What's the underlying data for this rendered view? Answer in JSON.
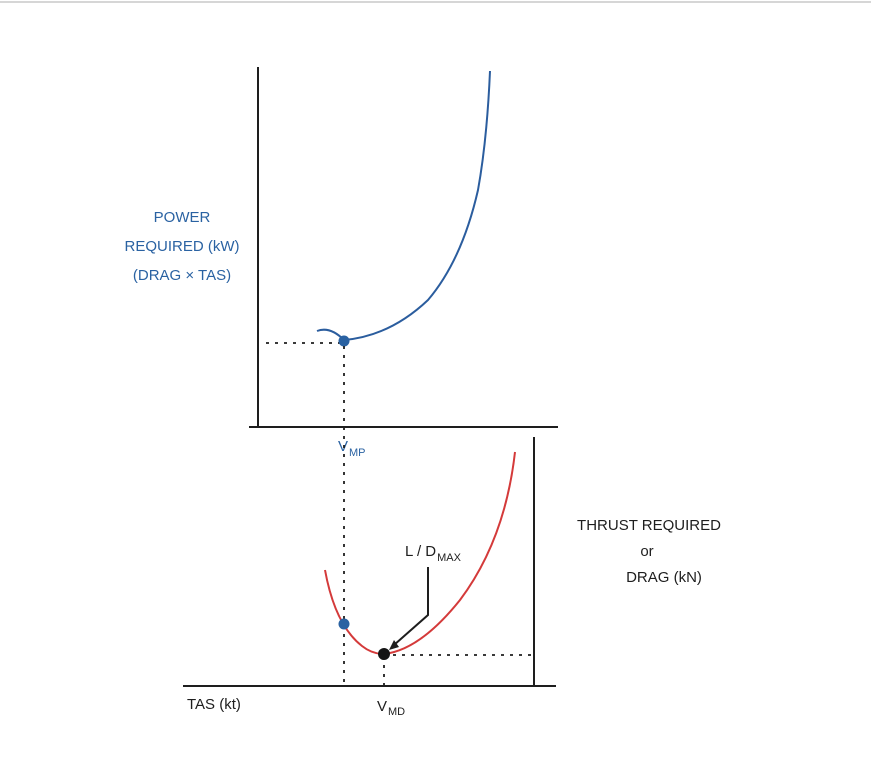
{
  "colors": {
    "power_curve": "#2b5d9e",
    "drag_curve": "#d43a3a",
    "blue_point": "#2a62a2",
    "black_point": "#141414",
    "axis": "#1e1e1e",
    "blue_text": "#2a62a2"
  },
  "upper_graph": {
    "ylabel_line1": "POWER",
    "ylabel_line2": "REQUIRED  (kW)",
    "ylabel_line3": "(DRAG  ×  TAS)",
    "vmp_main": "V",
    "vmp_sub": "MP"
  },
  "lower_graph": {
    "ylabel_line1": "THRUST  REQUIRED",
    "ylabel_line2": "or",
    "ylabel_line3": "DRAG (kN)",
    "xlabel": "TAS  (kt)",
    "vmd_main": "V",
    "vmd_sub": "MD",
    "ld_main": "L / D",
    "ld_sub": "MAX"
  }
}
